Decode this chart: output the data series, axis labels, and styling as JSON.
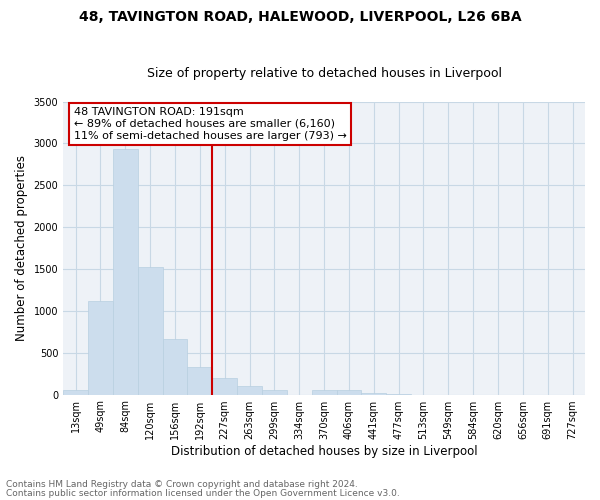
{
  "title": "48, TAVINGTON ROAD, HALEWOOD, LIVERPOOL, L26 6BA",
  "subtitle": "Size of property relative to detached houses in Liverpool",
  "xlabel": "Distribution of detached houses by size in Liverpool",
  "ylabel": "Number of detached properties",
  "footnote1": "Contains HM Land Registry data © Crown copyright and database right 2024.",
  "footnote2": "Contains public sector information licensed under the Open Government Licence v3.0.",
  "annotation_line1": "48 TAVINGTON ROAD: 191sqm",
  "annotation_line2": "← 89% of detached houses are smaller (6,160)",
  "annotation_line3": "11% of semi-detached houses are larger (793) →",
  "bar_categories": [
    "13sqm",
    "49sqm",
    "84sqm",
    "120sqm",
    "156sqm",
    "192sqm",
    "227sqm",
    "263sqm",
    "299sqm",
    "334sqm",
    "370sqm",
    "406sqm",
    "441sqm",
    "477sqm",
    "513sqm",
    "549sqm",
    "584sqm",
    "620sqm",
    "656sqm",
    "691sqm",
    "727sqm"
  ],
  "bar_values": [
    50,
    1120,
    2930,
    1520,
    660,
    330,
    200,
    100,
    50,
    0,
    50,
    50,
    20,
    10,
    0,
    0,
    0,
    0,
    0,
    0,
    0
  ],
  "bar_color": "#ccdded",
  "bar_edge_color": "#b8cfe0",
  "vline_color": "#cc0000",
  "vline_x": 5.5,
  "annotation_box_color": "#cc0000",
  "ylim": [
    0,
    3500
  ],
  "yticks": [
    0,
    500,
    1000,
    1500,
    2000,
    2500,
    3000,
    3500
  ],
  "grid_color": "#c8d8e5",
  "background_color": "#eef2f7",
  "title_fontsize": 10,
  "subtitle_fontsize": 9,
  "axis_label_fontsize": 8.5,
  "tick_fontsize": 7,
  "annotation_fontsize": 8,
  "footnote_fontsize": 6.5
}
